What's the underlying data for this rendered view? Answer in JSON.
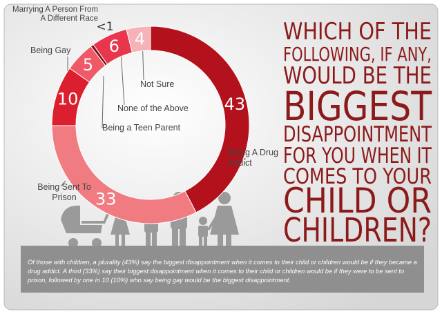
{
  "chart_data": {
    "type": "donut",
    "categories": [
      "Being A Drug Addict",
      "Being Sent To Prison",
      "Being Gay",
      "Being a Teen Parent",
      "Marrying A Person From A Different Race",
      "None of the Above",
      "Not Sure"
    ],
    "values": [
      43,
      33,
      10,
      5,
      0.5,
      6,
      4
    ],
    "value_labels": [
      "43",
      "33",
      "10",
      "5",
      "<1",
      "6",
      "4"
    ],
    "colors": [
      "#b3121c",
      "#f07c82",
      "#dc1f2e",
      "#ee5a68",
      "#7e0f14",
      "#e8364c",
      "#f5b3b7"
    ]
  },
  "title_lines": [
    "WHICH OF THE",
    "FOLLOWING, IF ANY,",
    "WOULD BE THE",
    "BIGGEST",
    "DISAPPOINTMENT",
    "FOR YOU WHEN IT",
    "COMES TO YOUR",
    "CHILD OR",
    "CHILDREN?"
  ],
  "footnote": "Of those with children, a plurality (43%) say the biggest disappointment when it comes to their child or children would be if they became a drug addict. A third (33%) say their biggest disappointment when it comes to their child or children would be if they were to be sent to prison, followed by one in 10 (10%) who say being gay would be the biggest disappointment."
}
